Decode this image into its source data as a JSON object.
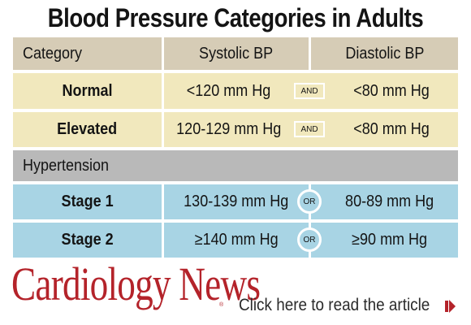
{
  "title": "Blood Pressure Categories in Adults",
  "table": {
    "headers": {
      "category": "Category",
      "systolic": "Systolic BP",
      "diastolic": "Diastolic BP"
    },
    "rows": [
      {
        "category": "Normal",
        "systolic": "<120 mm Hg",
        "connector": "AND",
        "diastolic": "<80 mm Hg"
      },
      {
        "category": "Elevated",
        "systolic": "120-129 mm Hg",
        "connector": "AND",
        "diastolic": "<80 mm Hg"
      },
      {
        "section": "Hypertension"
      },
      {
        "category": "Stage 1",
        "systolic": "130-139 mm Hg",
        "connector": "OR",
        "diastolic": "80-89 mm Hg"
      },
      {
        "category": "Stage 2",
        "systolic": "≥140 mm Hg",
        "connector": "OR",
        "diastolic": "≥90 mm Hg"
      }
    ]
  },
  "footer": {
    "brand": "Cardiology News",
    "registered": "®",
    "cta": "Click here to read the article",
    "cta_icon": "arrow-right-icon"
  },
  "colors": {
    "header_bg": "#d6ccb6",
    "normal_rows_bg": "#f1e8bd",
    "section_bg": "#b9b9b9",
    "hypertension_rows_bg": "#a8d4e4",
    "brand": "#b4232a"
  }
}
